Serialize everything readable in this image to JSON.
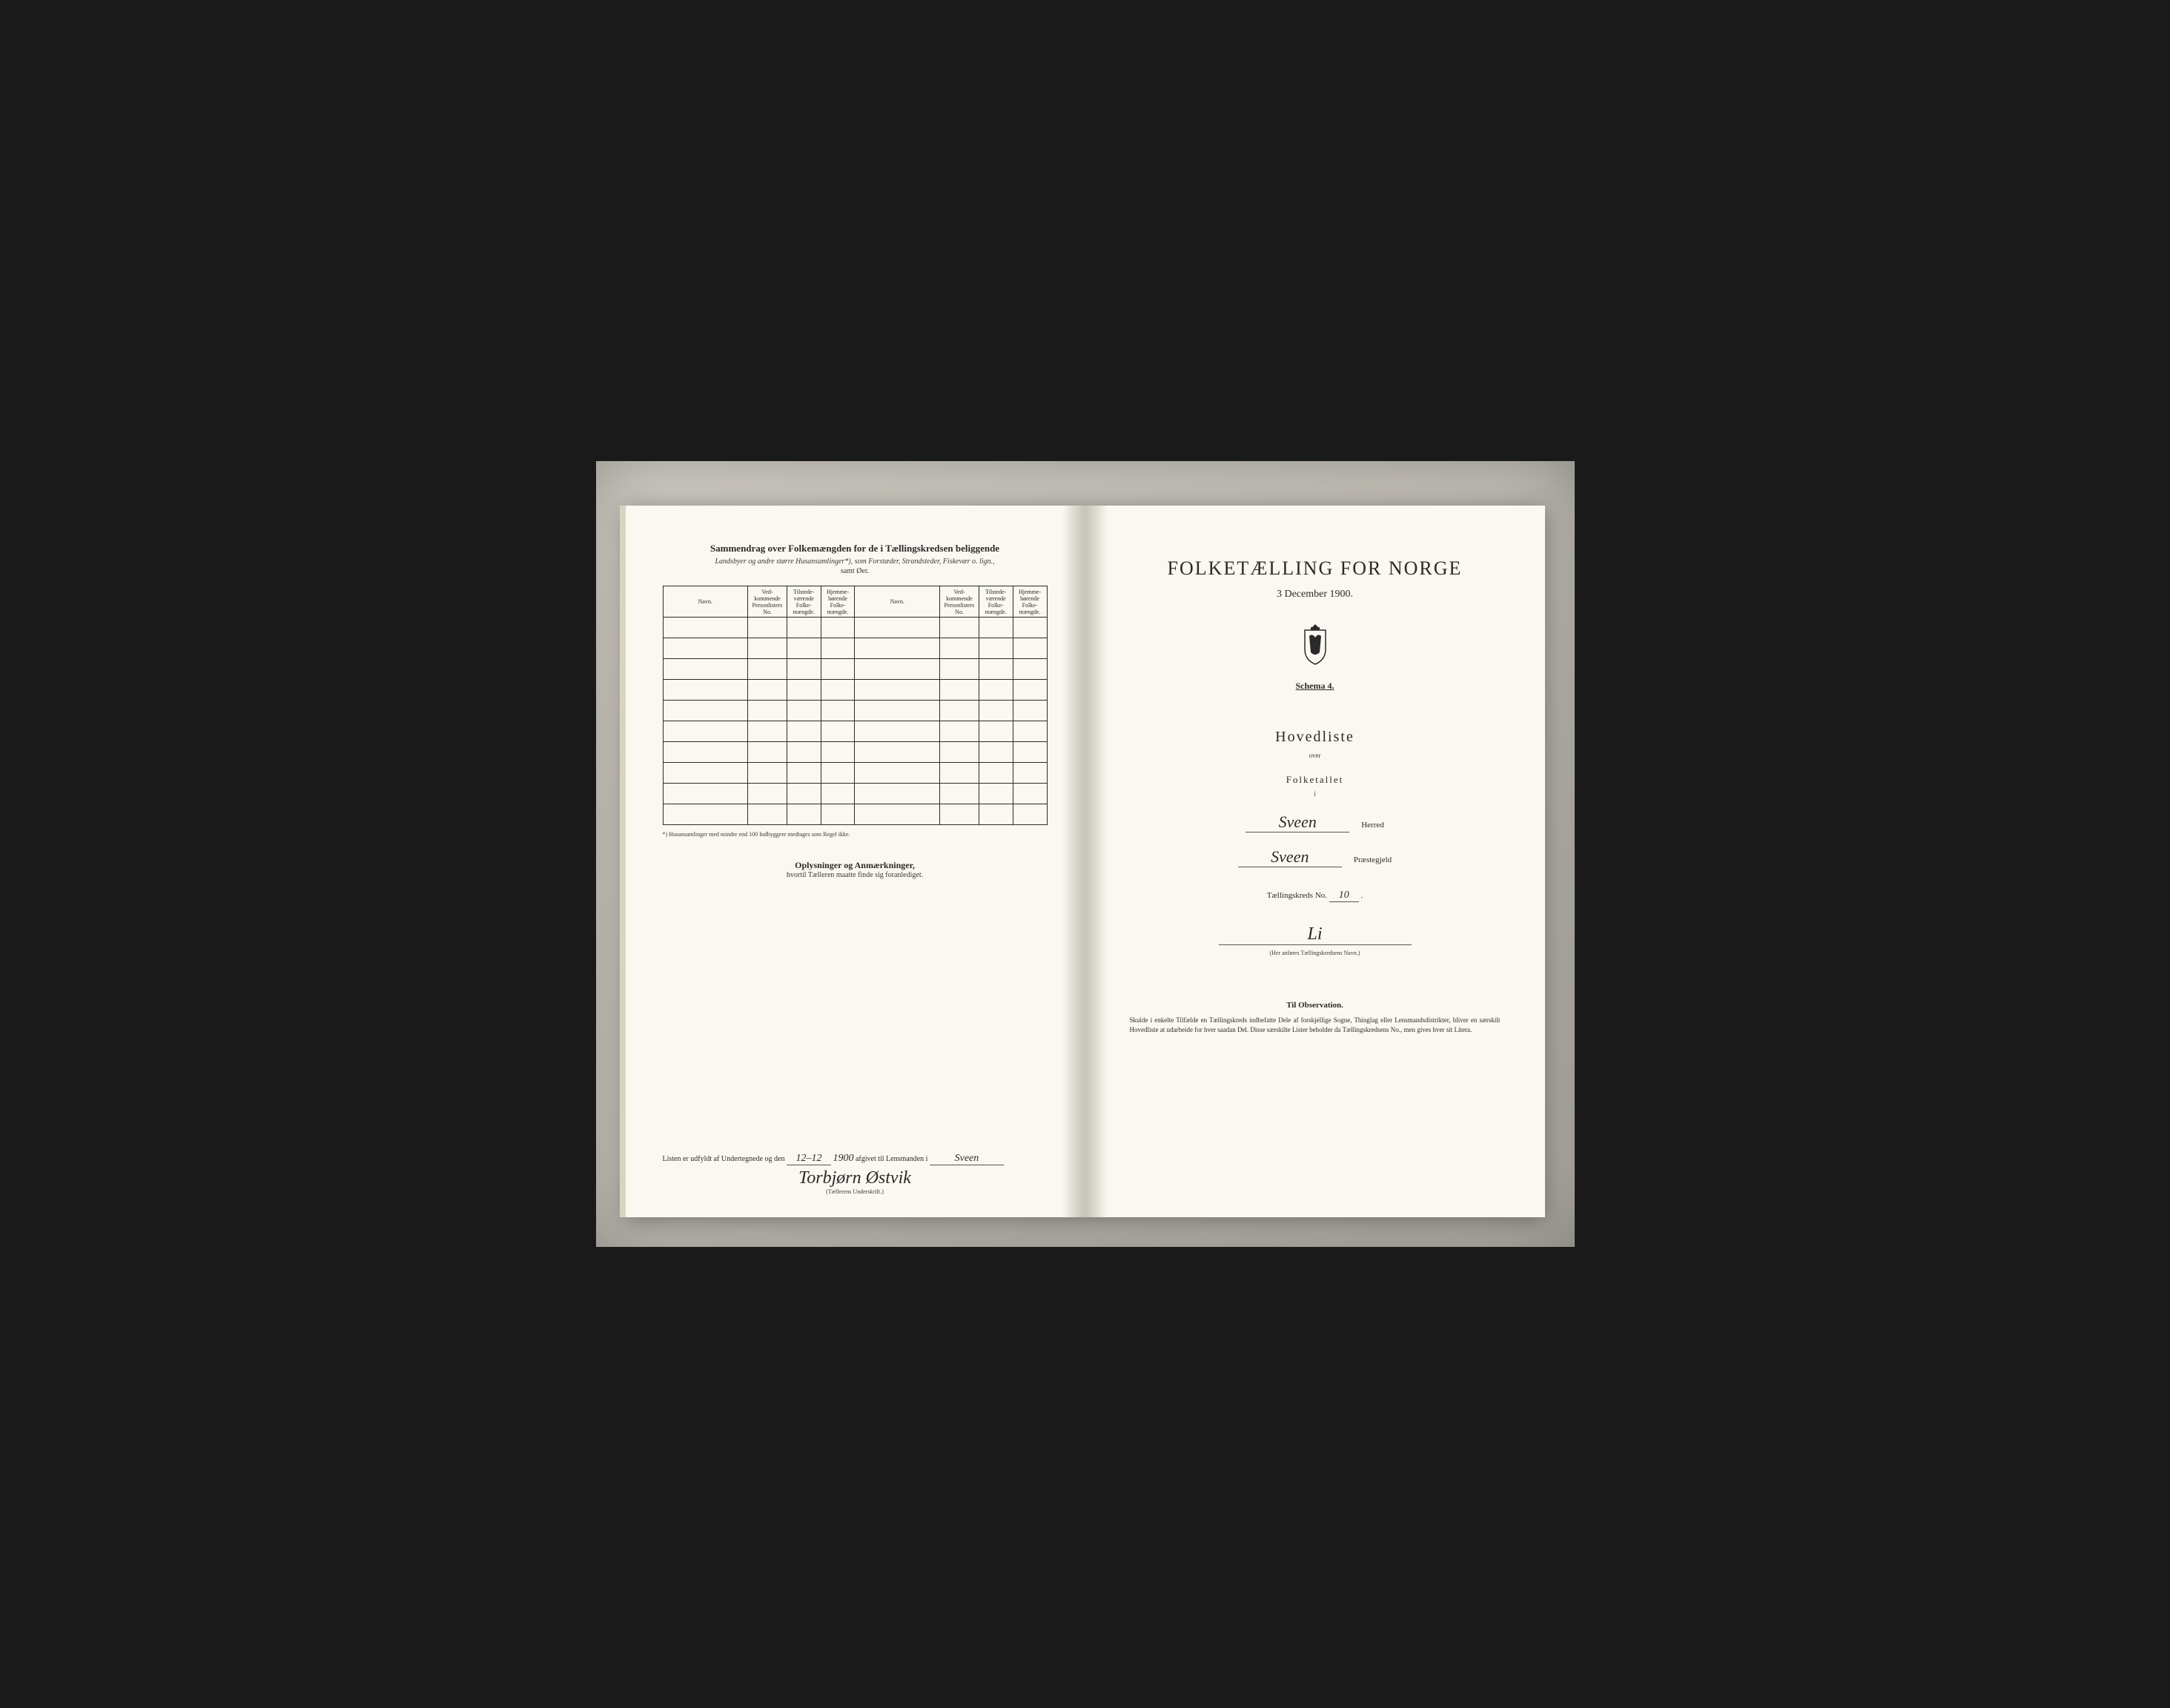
{
  "leftPage": {
    "title": "Sammendrag over Folkemængden for de i Tællingskredsen beliggende",
    "subtitle": "Landsbyer og andre større Husansamlinger*), som Forstæder, Strandsteder, Fiskevær o. lign.,",
    "subtitle2": "samt Øer.",
    "table": {
      "headers": {
        "navn": "Navn.",
        "col1": "Ved-kommende Personlisters No.",
        "col2": "Tilstede-værende Folke-mængde.",
        "col3": "Hjemme-hørende Folke-mængde."
      },
      "rowCount": 10
    },
    "footnote": "*) Husansamlinger med mindre end 100 Indbyggere medtages som Regel ikke.",
    "oplysTitle": "Oplysninger og Anmærkninger,",
    "oplysSub": "hvortil Tælleren maatte finde sig foranlediget.",
    "bottomLine": {
      "prefix": "Listen er udfyldt af Undertegnede og den",
      "date1": "12–12",
      "date2": "1900",
      "middle": "afgivet til Lensmanden i",
      "place": "Sveen"
    },
    "signature": {
      "name": "Torbjørn Østvik",
      "label": "(Tællerens Underskrift.)"
    }
  },
  "rightPage": {
    "mainTitle": "FOLKETÆLLING FOR NORGE",
    "date": "3 December 1900.",
    "schema": "Schema 4.",
    "hovedliste": "Hovedliste",
    "over": "over",
    "folketallet": "Folketallet",
    "i": "i",
    "herred": {
      "value": "Sveen",
      "label": "Herred"
    },
    "prastegjeld": {
      "value": "Sveen",
      "label": "Præstegjeld"
    },
    "kredsNo": {
      "label": "Tællingskreds No.",
      "value": "10"
    },
    "kredsName": "Li",
    "kredsHint": "(Her anføres Tællingskredsens Navn.)",
    "obsTitle": "Til Observation.",
    "obsText": "Skulde i enkelte Tilfælde en Tællingskreds indbefatte Dele af forskjellige Sogne, Thinglag eller Lensmandsdistrikter, bliver en særskilt Hovedliste at udarbeide for hver saadan Del. Disse særskilte Lister beholder da Tællingskredsens No., men gives hver sit Litera."
  },
  "colors": {
    "ink": "#2a2a2a",
    "paper": "#faf8f0",
    "background": "#1a1a1a"
  }
}
